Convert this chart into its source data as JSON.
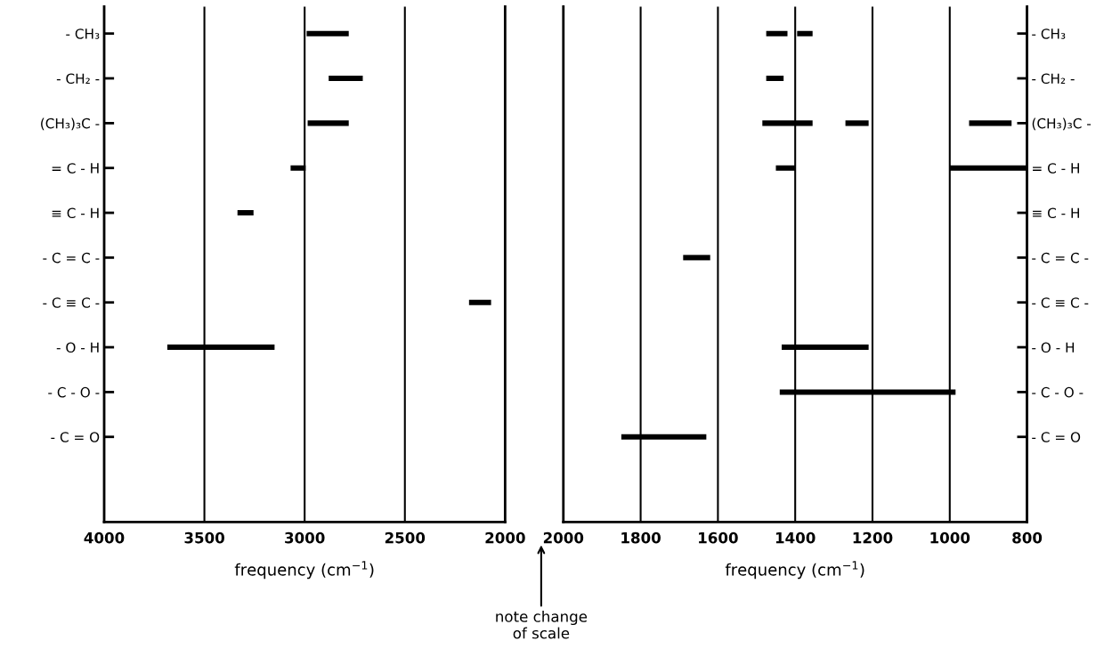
{
  "chart_data": [
    {
      "type": "bar",
      "orientation": "horizontal",
      "categories": [
        "- CH₃",
        "- CH₂ -",
        "(CH₃)₃C -",
        "= C - H",
        "≡ C - H",
        "- C = C -",
        "- C ≡ C -",
        "- O - H",
        "- C - O -",
        "- C = O"
      ],
      "series": [
        {
          "color": "#000000",
          "base": [
            2780,
            2710,
            2780,
            2995,
            3255,
            null,
            2070,
            3150,
            null,
            null
          ],
          "values": [
            210,
            170,
            205,
            75,
            80,
            null,
            110,
            535,
            null,
            null
          ]
        }
      ],
      "xlim": [
        4000,
        2000
      ],
      "xticks": [
        4000,
        3500,
        3000,
        2500,
        2000
      ],
      "grid": "x",
      "xlabel": "frequency (cm$^{−1}$)",
      "annotations": [
        "note change\nof scale"
      ]
    },
    {
      "type": "bar",
      "orientation": "horizontal",
      "categories": [
        "- CH₃",
        "- CH₂ -",
        "(CH₃)₃C -",
        "= C - H",
        "≡ C - H",
        "- C = C -",
        "- C ≡ C -",
        "- O - H",
        "- C - O -",
        "- C = O"
      ],
      "series": [
        {
          "color": "#000000",
          "base": [
            1420,
            1430,
            1355,
            1400,
            null,
            1620,
            null,
            1210,
            985,
            1630
          ],
          "values": [
            55,
            45,
            130,
            50,
            null,
            70,
            null,
            225,
            455,
            220
          ]
        },
        {
          "color": "#000000",
          "base": [
            1355,
            null,
            1210,
            800,
            null,
            null,
            null,
            null,
            null,
            null
          ],
          "values": [
            40,
            null,
            60,
            200,
            null,
            null,
            null,
            null,
            null,
            null
          ]
        },
        {
          "color": "#000000",
          "base": [
            null,
            null,
            840,
            null,
            null,
            null,
            null,
            null,
            null,
            null
          ],
          "values": [
            null,
            null,
            110,
            null,
            null,
            null,
            null,
            null,
            null,
            null
          ]
        }
      ],
      "xlim": [
        2000,
        800
      ],
      "xticks": [
        2000,
        1800,
        1600,
        1400,
        1200,
        1000,
        800
      ],
      "grid": "x",
      "xlabel": "frequency (cm$^{−1}$)"
    }
  ]
}
